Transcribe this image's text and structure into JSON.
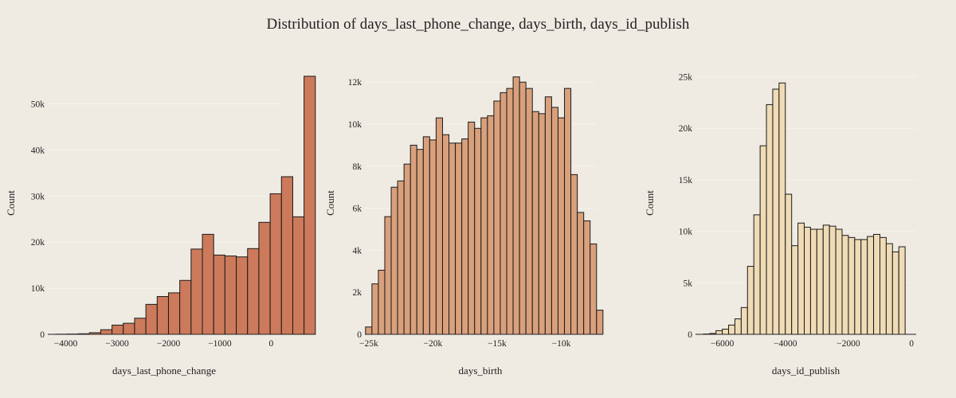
{
  "title": "Distribution of days_last_phone_change, days_birth, days_id_publish",
  "chart_data": [
    {
      "type": "bar",
      "subtype": "histogram",
      "color": "#cc7a5b",
      "xlabel": "days_last_phone_change",
      "ylabel": "Count",
      "xlim": [
        -4350,
        180
      ],
      "ylim": [
        0,
        57000
      ],
      "xticks": [
        -4000,
        -3000,
        -2000,
        -1000,
        0
      ],
      "xtick_labels": [
        "−4000",
        "−3000",
        "−2000",
        "−1000",
        "0"
      ],
      "yticks": [
        0,
        10000,
        20000,
        30000,
        40000,
        50000
      ],
      "ytick_labels": [
        "0",
        "10k",
        "20k",
        "30k",
        "40k",
        "50k"
      ],
      "bin_width": 220,
      "bin_edges_start": -4200,
      "values": [
        30,
        60,
        120,
        350,
        1000,
        2000,
        2400,
        3500,
        6500,
        8200,
        9000,
        11700,
        18500,
        21700,
        17200,
        17000,
        16800,
        18600,
        24300,
        30500,
        34200,
        25500,
        56000
      ]
    },
    {
      "type": "bar",
      "subtype": "histogram",
      "color": "#d9a07c",
      "xlabel": "days_birth",
      "ylabel": "Count",
      "xlim": [
        -25300,
        -7300
      ],
      "ylim": [
        0,
        12500
      ],
      "xticks": [
        -25000,
        -20000,
        -15000,
        -10000
      ],
      "xtick_labels": [
        "−25k",
        "−20k",
        "−15k",
        "−10k"
      ],
      "yticks": [
        0,
        2000,
        4000,
        6000,
        8000,
        10000,
        12000
      ],
      "ytick_labels": [
        "0",
        "2k",
        "4k",
        "6k",
        "8k",
        "10k",
        "12k"
      ],
      "bin_width": 500,
      "bin_edges_start": -25250,
      "values": [
        350,
        2400,
        3050,
        5600,
        7000,
        7300,
        8100,
        9000,
        8800,
        9400,
        9250,
        10300,
        9500,
        9100,
        9100,
        9300,
        10100,
        9800,
        10300,
        10400,
        11100,
        11500,
        11700,
        12250,
        12000,
        11700,
        10600,
        10500,
        11300,
        10800,
        10300,
        11700,
        7600,
        5800,
        5400,
        4300,
        1150
      ]
    },
    {
      "type": "bar",
      "subtype": "histogram",
      "color": "#efdbb5",
      "xlabel": "days_id_publish",
      "ylabel": "Count",
      "xlim": [
        -6850,
        150
      ],
      "ylim": [
        0,
        25500
      ],
      "xticks": [
        -6000,
        -4000,
        -2000,
        0
      ],
      "xtick_labels": [
        "−6000",
        "−4000",
        "−2000",
        "0"
      ],
      "yticks": [
        0,
        5000,
        10000,
        15000,
        20000,
        25000
      ],
      "ytick_labels": [
        "0",
        "5k",
        "10k",
        "15k",
        "20k",
        "25k"
      ],
      "bin_width": 200,
      "bin_edges_start": -6600,
      "values": [
        30,
        80,
        350,
        500,
        900,
        1500,
        2600,
        6600,
        11600,
        18300,
        22300,
        23800,
        24400,
        13600,
        8600,
        10800,
        10400,
        10200,
        10200,
        10600,
        10500,
        10200,
        9600,
        9400,
        9200,
        9200,
        9500,
        9700,
        9400,
        8800,
        8000,
        8500
      ]
    }
  ]
}
